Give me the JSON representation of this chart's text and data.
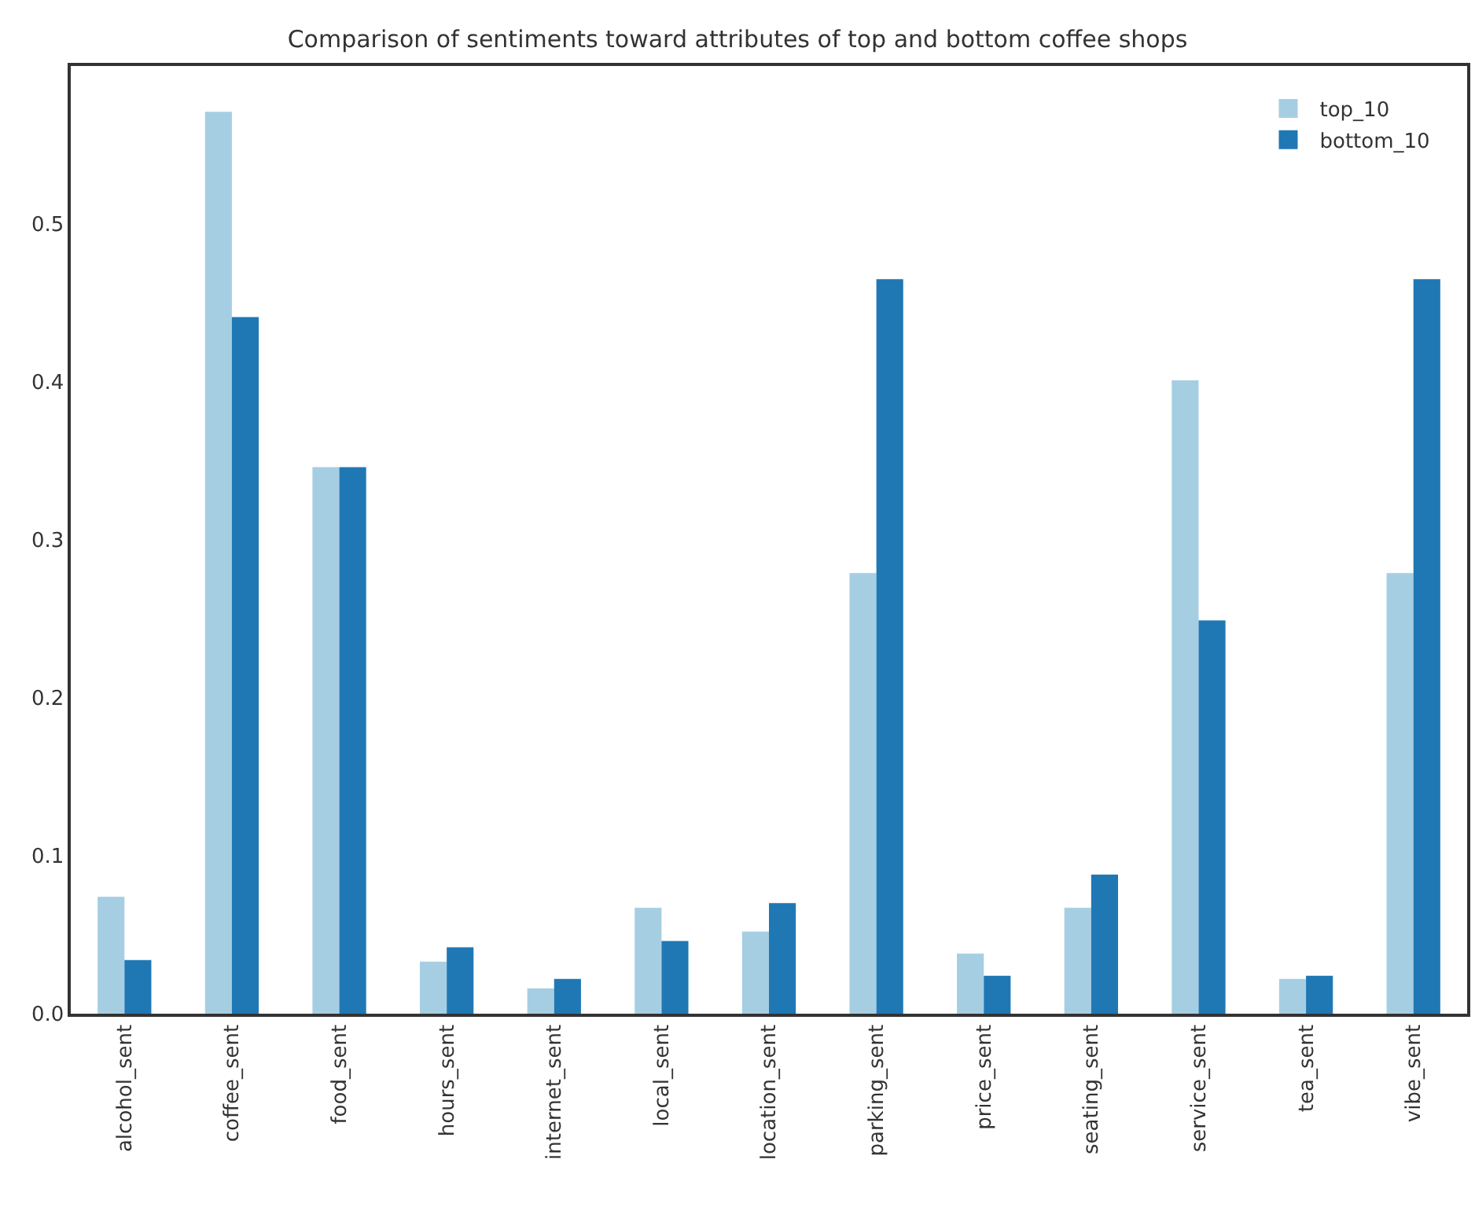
{
  "chart_data": {
    "type": "bar",
    "title": "Comparison of sentiments toward attributes of top and bottom coffee shops",
    "categories": [
      "alcohol_sent",
      "coffee_sent",
      "food_sent",
      "hours_sent",
      "internet_sent",
      "local_sent",
      "location_sent",
      "parking_sent",
      "price_sent",
      "seating_sent",
      "service_sent",
      "tea_sent",
      "vibe_sent"
    ],
    "series": [
      {
        "name": "top_10",
        "color": "#a6cee3",
        "values": [
          0.074,
          0.571,
          0.346,
          0.033,
          0.016,
          0.067,
          0.052,
          0.279,
          0.038,
          0.067,
          0.401,
          0.022,
          0.279
        ]
      },
      {
        "name": "bottom_10",
        "color": "#1f78b4",
        "values": [
          0.034,
          0.441,
          0.346,
          0.042,
          0.022,
          0.046,
          0.07,
          0.465,
          0.024,
          0.088,
          0.249,
          0.024,
          0.465
        ]
      }
    ],
    "ylim": [
      0,
      0.6
    ],
    "yticks": [
      {
        "value": 0,
        "label": "0.0"
      },
      {
        "value": 0.1,
        "label": "0.1"
      },
      {
        "value": 0.2,
        "label": "0.2"
      },
      {
        "value": 0.3,
        "label": "0.3"
      },
      {
        "value": 0.4,
        "label": "0.4"
      },
      {
        "value": 0.5,
        "label": "0.5"
      }
    ],
    "grid": false,
    "legend": "top right"
  }
}
